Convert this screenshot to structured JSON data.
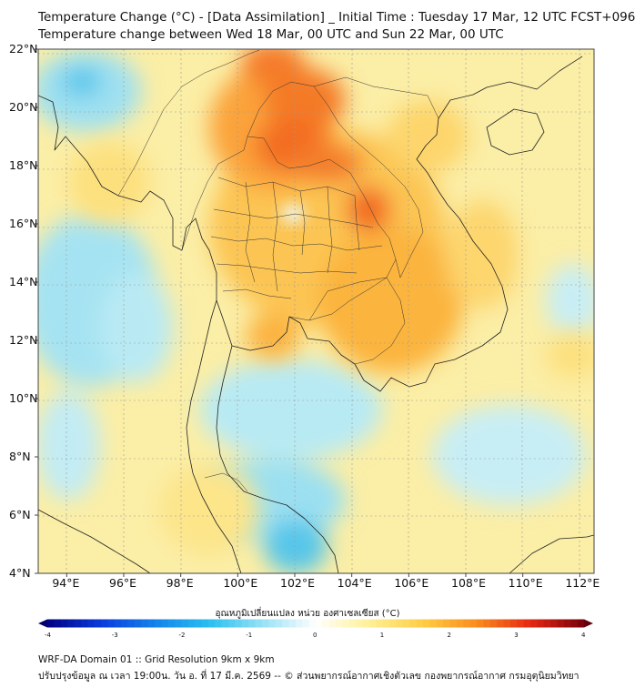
{
  "title_line1": "Temperature Change (°C) - [Data Assimilation] _ Initial Time : Tuesday 17 Mar, 12 UTC FCST+096",
  "title_line2": "Temperature change between Wed 18 Mar, 00 UTC and Sun 22 Mar, 00 UTC",
  "map": {
    "lat_labels": [
      "22°N",
      "20°N",
      "18°N",
      "16°N",
      "14°N",
      "12°N",
      "10°N",
      "8°N",
      "6°N",
      "4°N"
    ],
    "lon_labels": [
      "94°E",
      "96°E",
      "98°E",
      "100°E",
      "102°E",
      "104°E",
      "106°E",
      "108°E",
      "110°E",
      "112°E"
    ],
    "lat_range": [
      4,
      22
    ],
    "lon_range": [
      93,
      112.5
    ]
  },
  "colorbar": {
    "title": "อุณหภูมิเปลี่ยนแปลง หน่วย องศาเซลเซียส (°C)",
    "ticks": [
      "-4",
      "-3",
      "-2",
      "-1",
      "0",
      "1",
      "2",
      "3",
      "4"
    ],
    "range": [
      -4,
      4
    ]
  },
  "footer_line1": "WRF-DA Domain 01 :: Grid Resolution 9km x 9km",
  "footer_line2": "ปรับปรุงข้อมูล ณ เวลา 19:00น. วัน อ. ที่ 17 มี.ค. 2569 -- © ส่วนพยากรณ์อากาศเชิงตัวเลข กองพยากรณ์อากาศ กรมอุตุนิยมวิทยา"
}
